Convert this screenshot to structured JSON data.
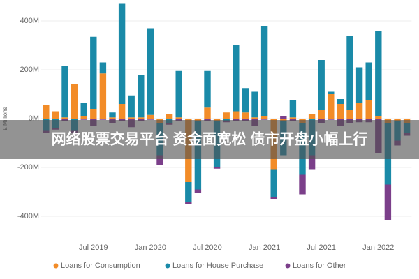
{
  "chart_data": {
    "type": "stacked_bar",
    "caption": "网络股票交易平台 资金面宽松 债市开盘小幅上行",
    "y_label": "£ Millions",
    "categories": [
      null,
      null,
      null,
      null,
      null,
      "Jul 2019",
      null,
      null,
      null,
      null,
      null,
      "Jan 2020",
      null,
      null,
      null,
      null,
      null,
      "Jul 2020",
      null,
      null,
      null,
      null,
      null,
      "Jan 2021",
      null,
      null,
      null,
      null,
      null,
      "Jul 2021",
      null,
      null,
      null,
      null,
      null,
      "Jan 2022",
      null,
      null,
      null
    ],
    "series": [
      {
        "name": "Loans for Consumption",
        "color": "#f28c28",
        "values": [
          55,
          30,
          5,
          140,
          10,
          40,
          185,
          5,
          60,
          5,
          5,
          15,
          -20,
          20,
          5,
          -260,
          -10,
          45,
          -10,
          25,
          30,
          25,
          5,
          10,
          -210,
          -10,
          5,
          -20,
          20,
          35,
          100,
          60,
          35,
          65,
          75,
          10,
          -20,
          -10,
          -20
        ]
      },
      {
        "name": "Loans for House Purchase",
        "color": "#1a8aa8",
        "values": [
          -50,
          -40,
          210,
          -50,
          55,
          295,
          45,
          20,
          410,
          90,
          175,
          355,
          -130,
          -20,
          190,
          -80,
          -280,
          150,
          -190,
          -10,
          270,
          100,
          105,
          370,
          -110,
          -140,
          70,
          -210,
          -150,
          205,
          10,
          20,
          305,
          145,
          155,
          350,
          -250,
          -80,
          -40
        ]
      },
      {
        "name": "Loans for Other",
        "color": "#7b3f8a",
        "values": [
          -10,
          -5,
          -10,
          -10,
          -5,
          -30,
          -5,
          -20,
          -10,
          -35,
          -10,
          -5,
          -40,
          -5,
          -10,
          -10,
          -15,
          -10,
          -5,
          -5,
          -10,
          -10,
          -30,
          -5,
          -10,
          10,
          -10,
          -80,
          -60,
          -20,
          -5,
          -30,
          -20,
          -15,
          -15,
          -140,
          -145,
          -20,
          -10
        ]
      }
    ],
    "ylim": [
      -450,
      480
    ],
    "yticks": [
      {
        "value": -400,
        "label": "-400M"
      },
      {
        "value": -200,
        "label": "-200M"
      },
      {
        "value": 0,
        "label": "0M"
      },
      {
        "value": 200,
        "label": "200M"
      },
      {
        "value": 400,
        "label": "400M"
      }
    ],
    "grid": true
  }
}
